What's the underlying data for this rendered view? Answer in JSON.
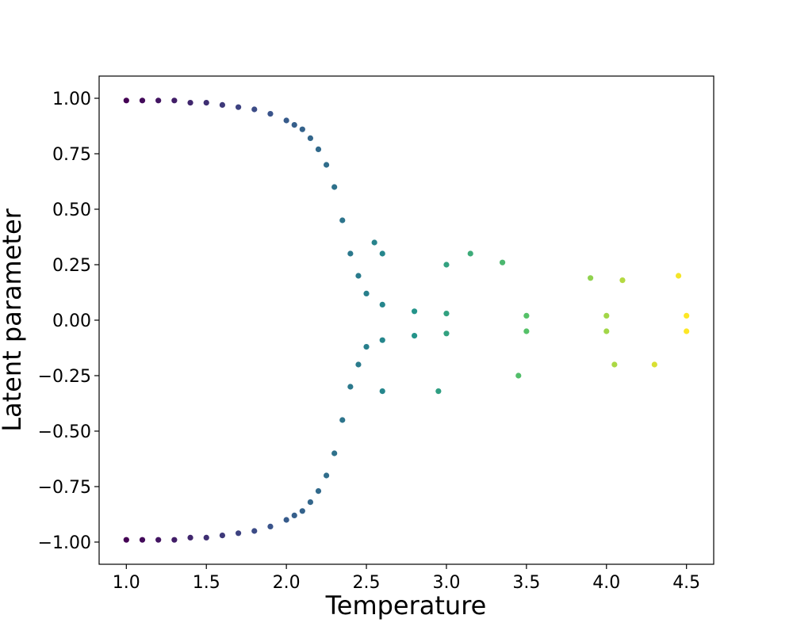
{
  "chart_data": {
    "type": "scatter",
    "title": "",
    "xlabel": "Temperature",
    "ylabel": "Latent parameter",
    "xlim": [
      0.83,
      4.67
    ],
    "ylim": [
      -1.1,
      1.1
    ],
    "xticks": [
      1.0,
      1.5,
      2.0,
      2.5,
      3.0,
      3.5,
      4.0,
      4.5
    ],
    "xtick_labels": [
      "1.0",
      "1.5",
      "2.0",
      "2.5",
      "3.0",
      "3.5",
      "4.0",
      "4.5"
    ],
    "yticks": [
      1.0,
      0.75,
      0.5,
      0.25,
      0.0,
      -0.25,
      -0.5,
      -0.75,
      -1.0
    ],
    "ytick_labels": [
      "1.00",
      "0.75",
      "0.50",
      "0.25",
      "0.00",
      "−0.25",
      "−0.50",
      "−0.75",
      "−1.00"
    ],
    "grid": false,
    "legend": "none",
    "colormap": "viridis",
    "colormap_stops": [
      "#440154",
      "#3b528b",
      "#21918c",
      "#5ec962",
      "#fde725"
    ],
    "color_by": "x",
    "series": [
      {
        "points": [
          [
            1.0,
            0.99
          ],
          [
            1.1,
            0.99
          ],
          [
            1.2,
            0.99
          ],
          [
            1.3,
            0.99
          ],
          [
            1.4,
            0.98
          ],
          [
            1.5,
            0.98
          ],
          [
            1.6,
            0.97
          ],
          [
            1.7,
            0.96
          ],
          [
            1.8,
            0.95
          ],
          [
            1.9,
            0.93
          ],
          [
            2.0,
            0.9
          ],
          [
            2.05,
            0.88
          ],
          [
            2.1,
            0.86
          ],
          [
            2.15,
            0.82
          ],
          [
            2.2,
            0.77
          ],
          [
            2.25,
            0.7
          ],
          [
            2.3,
            0.6
          ],
          [
            2.35,
            0.45
          ],
          [
            2.4,
            0.3
          ],
          [
            2.45,
            0.2
          ],
          [
            2.5,
            0.12
          ],
          [
            2.6,
            0.07
          ],
          [
            2.8,
            0.04
          ],
          [
            3.0,
            0.03
          ],
          [
            3.5,
            0.02
          ],
          [
            4.0,
            0.02
          ],
          [
            4.5,
            0.02
          ],
          [
            1.0,
            -0.99
          ],
          [
            1.1,
            -0.99
          ],
          [
            1.2,
            -0.99
          ],
          [
            1.3,
            -0.99
          ],
          [
            1.4,
            -0.98
          ],
          [
            1.5,
            -0.98
          ],
          [
            1.6,
            -0.97
          ],
          [
            1.7,
            -0.96
          ],
          [
            1.8,
            -0.95
          ],
          [
            1.9,
            -0.93
          ],
          [
            2.0,
            -0.9
          ],
          [
            2.05,
            -0.88
          ],
          [
            2.1,
            -0.86
          ],
          [
            2.15,
            -0.82
          ],
          [
            2.2,
            -0.77
          ],
          [
            2.25,
            -0.7
          ],
          [
            2.3,
            -0.6
          ],
          [
            2.35,
            -0.45
          ],
          [
            2.4,
            -0.3
          ],
          [
            2.45,
            -0.2
          ],
          [
            2.5,
            -0.12
          ],
          [
            2.6,
            -0.09
          ],
          [
            2.8,
            -0.07
          ],
          [
            3.0,
            -0.06
          ],
          [
            3.5,
            -0.05
          ],
          [
            4.0,
            -0.05
          ],
          [
            4.5,
            -0.05
          ],
          [
            2.55,
            0.35
          ],
          [
            2.6,
            0.3
          ],
          [
            3.0,
            0.25
          ],
          [
            3.15,
            0.3
          ],
          [
            3.35,
            0.26
          ],
          [
            3.9,
            0.19
          ],
          [
            4.1,
            0.18
          ],
          [
            4.45,
            0.2
          ],
          [
            2.6,
            -0.32
          ],
          [
            2.95,
            -0.32
          ],
          [
            3.45,
            -0.25
          ],
          [
            4.05,
            -0.2
          ],
          [
            4.3,
            -0.2
          ]
        ]
      }
    ]
  }
}
